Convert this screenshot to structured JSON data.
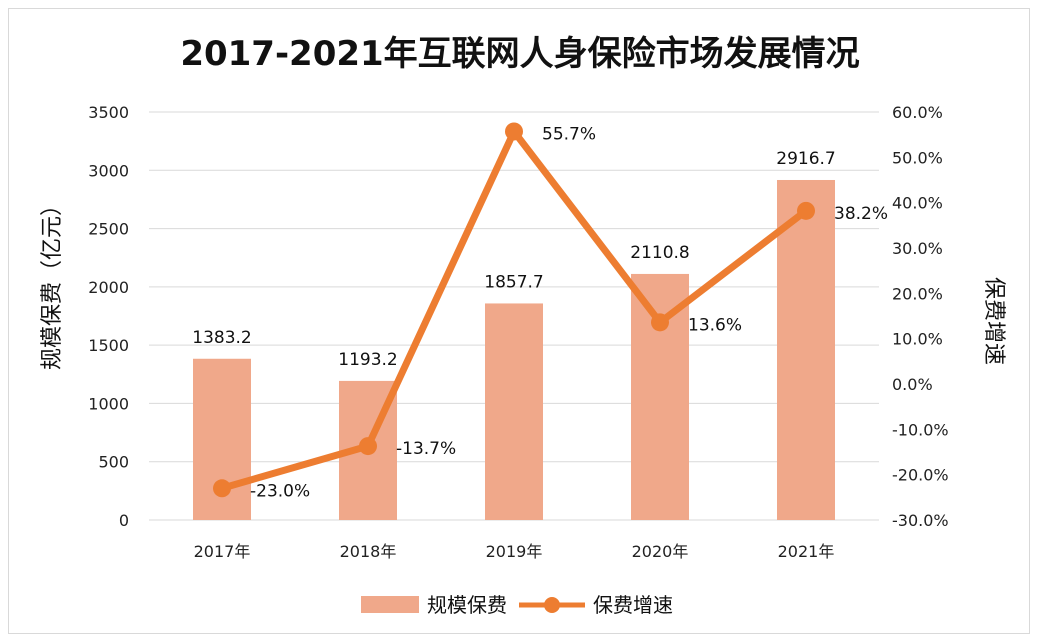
{
  "chart_data": {
    "type": "bar",
    "title": "2017-2021年互联网人身保险市场发展情况",
    "categories": [
      "2017年",
      "2018年",
      "2019年",
      "2020年",
      "2021年"
    ],
    "series": [
      {
        "name": "规模保费",
        "type": "bar",
        "axis": "left",
        "color": "#F0A88A",
        "values": [
          1383.2,
          1193.2,
          1857.7,
          2110.8,
          2916.7
        ],
        "labels": [
          "1383.2",
          "1193.2",
          "1857.7",
          "2110.8",
          "2916.7"
        ]
      },
      {
        "name": "保费增速",
        "type": "line",
        "axis": "right",
        "color": "#ED7D31",
        "values": [
          -23.0,
          -13.7,
          55.7,
          13.6,
          38.2
        ],
        "labels": [
          "-23.0%",
          "-13.7%",
          "55.7%",
          "13.6%",
          "38.2%"
        ]
      }
    ],
    "ylabel": "规模保费（亿元）",
    "y2label": "保费增速",
    "ylim": [
      0,
      3500
    ],
    "y2lim": [
      -30,
      60
    ],
    "yticks": [
      "0",
      "500",
      "1000",
      "1500",
      "2000",
      "2500",
      "3000",
      "3500"
    ],
    "y2ticks": [
      "-30.0%",
      "-20.0%",
      "-10.0%",
      "0.0%",
      "10.0%",
      "20.0%",
      "30.0%",
      "40.0%",
      "50.0%",
      "60.0%"
    ],
    "grid": true,
    "legend": "bottom-center"
  }
}
